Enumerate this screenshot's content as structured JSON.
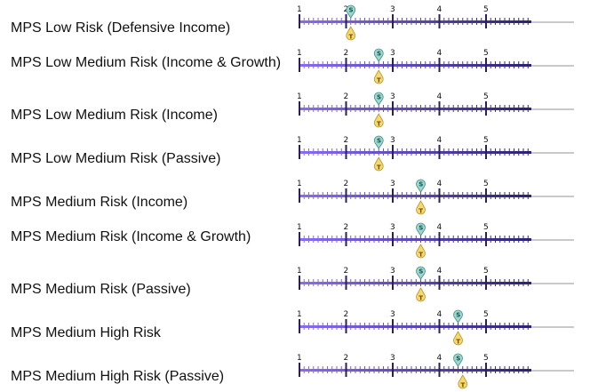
{
  "scale": {
    "min": 1,
    "max": 6,
    "labels": [
      "1",
      "2",
      "3",
      "4",
      "5"
    ],
    "colors": {
      "track_grey": "#c8c8ce",
      "bar_start": "#8a6cf4",
      "bar_end": "#2a2272",
      "s_marker_fill": "#9ad7cf",
      "s_marker_stroke": "#3f8f87",
      "t_marker_fill": "#f5d873",
      "t_marker_stroke": "#b9951f"
    },
    "marker_letters": {
      "s": "S",
      "t": "T"
    }
  },
  "portfolios": [
    {
      "label": "MPS Low Risk (Defensive Income)",
      "s_value": 2.1,
      "t_value": 2.1
    },
    {
      "label": "MPS Low Medium Risk (Income & Growth)",
      "s_value": 2.7,
      "t_value": 2.7
    },
    {
      "label": "MPS Low Medium Risk (Income)",
      "s_value": 2.7,
      "t_value": 2.7
    },
    {
      "label": "MPS Low Medium Risk (Passive)",
      "s_value": 2.7,
      "t_value": 2.7
    },
    {
      "label": "MPS Medium Risk (Income)",
      "s_value": 3.6,
      "t_value": 3.6
    },
    {
      "label": "MPS Medium Risk (Income & Growth)",
      "s_value": 3.6,
      "t_value": 3.6
    },
    {
      "label": "MPS Medium Risk (Passive)",
      "s_value": 3.6,
      "t_value": 3.6
    },
    {
      "label": "MPS Medium High Risk",
      "s_value": 4.4,
      "t_value": 4.4
    },
    {
      "label": "MPS Medium High Risk (Passive)",
      "s_value": 4.4,
      "t_value": 4.5
    }
  ]
}
